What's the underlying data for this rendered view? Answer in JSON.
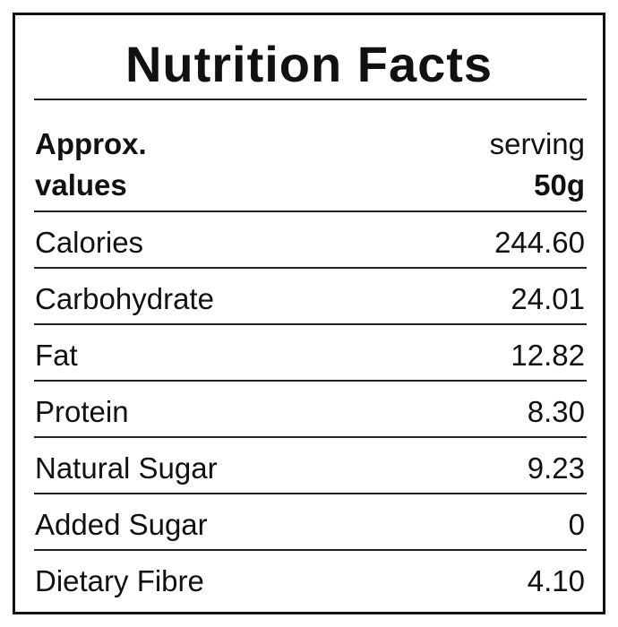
{
  "title": "Nutrition Facts",
  "header": {
    "left": [
      "Approx.",
      "values"
    ],
    "right": [
      "serving",
      "50g"
    ]
  },
  "table": {
    "rows": [
      [
        "Calories",
        "244.60"
      ],
      [
        "Carbohydrate",
        "24.01"
      ],
      [
        "Fat",
        "12.82"
      ],
      [
        "Protein",
        "8.30"
      ],
      [
        "Natural Sugar",
        "9.23"
      ],
      [
        "Added Sugar",
        "0"
      ],
      [
        "Dietary Fibre",
        "4.10"
      ]
    ]
  }
}
